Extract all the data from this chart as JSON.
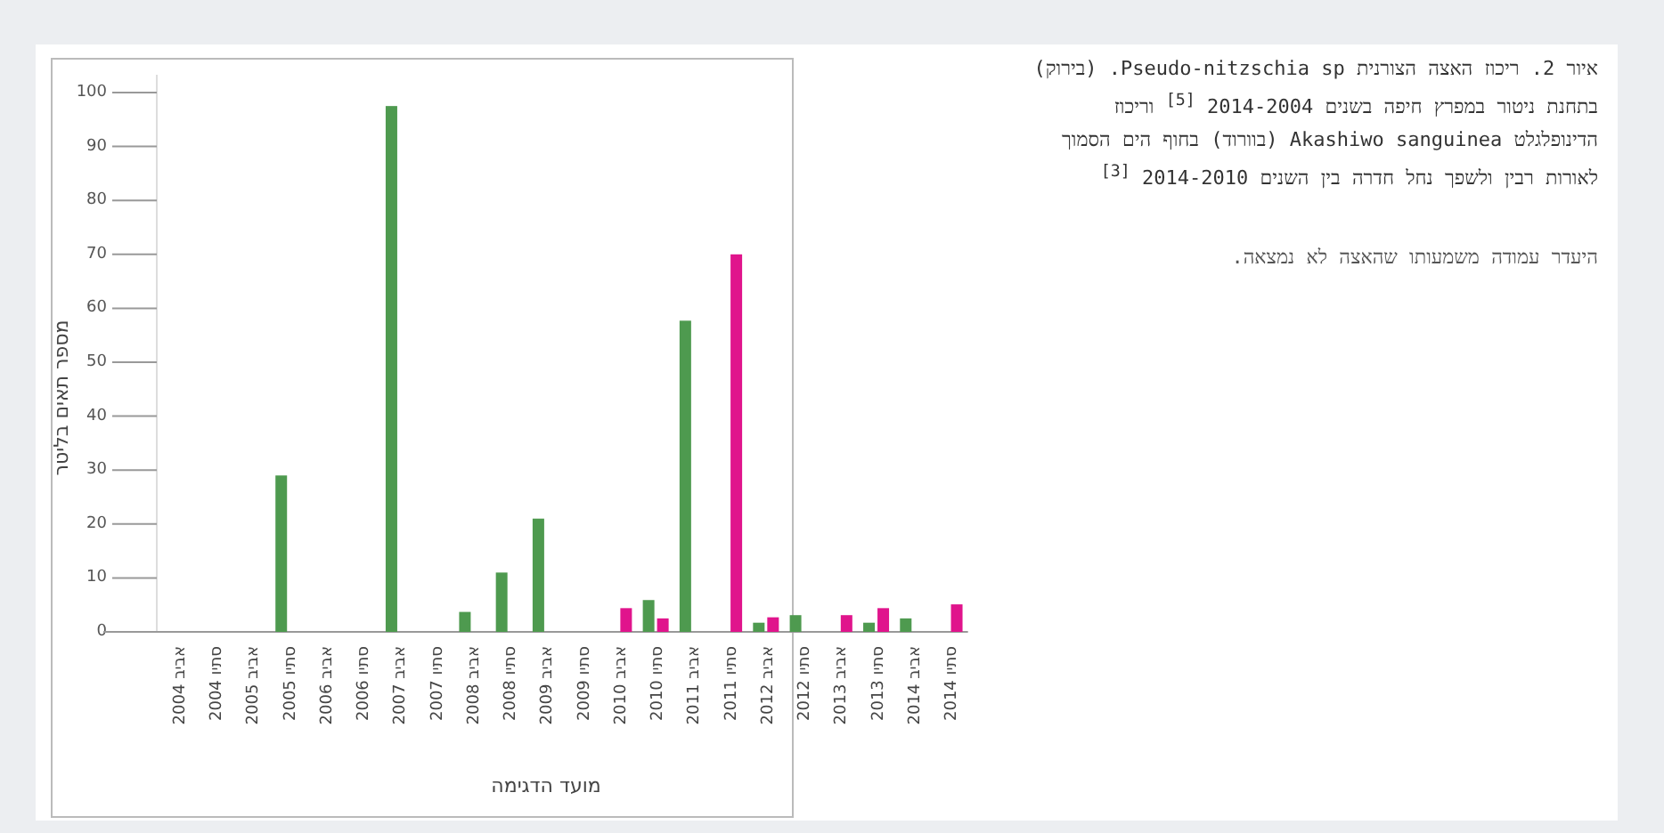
{
  "chart_data": {
    "type": "bar",
    "categories": [
      "אביב 2004",
      "סתיו 2004",
      "אביב 2005",
      "סתיו 2005",
      "אביב 2006",
      "סתיו 2006",
      "אביב 2007",
      "סתיו 2007",
      "אביב 2008",
      "סתיו 2008",
      "אביב 2009",
      "סתיו 2009",
      "אביב 2010",
      "סתיו 2010",
      "אביב 2011",
      "סתיו 2011",
      "אביב 2012",
      "סתיו 2012",
      "אביב 2013",
      "סתיו 2013",
      "אביב 2014",
      "סתיו 2014"
    ],
    "series": [
      {
        "color": "#4e9a4f",
        "values": [
          null,
          null,
          null,
          29,
          null,
          null,
          97.5,
          null,
          3.7,
          11,
          21,
          null,
          null,
          5.9,
          57.7,
          null,
          1.7,
          3.1,
          null,
          1.7,
          2.5,
          null
        ]
      },
      {
        "color": "#e0148c",
        "values": [
          null,
          null,
          null,
          null,
          null,
          null,
          null,
          null,
          null,
          null,
          null,
          null,
          4.4,
          2.5,
          null,
          70,
          2.7,
          null,
          3.1,
          4.4,
          null,
          5.1
        ]
      }
    ],
    "ylim": [
      0,
      100
    ],
    "yticks": [
      0,
      10,
      20,
      30,
      40,
      50,
      60,
      70,
      80,
      90,
      100
    ],
    "ylabel": "מספר תאים בליטר",
    "xlabel": "מועד הדגימה",
    "annotations": [
      "איור 2. ריכוז האצה הצורנית Pseudo-nitzschia sp. (בירוק) בתחנת ניטור במפרץ חיפה בשנים 2014-2004 $^{[5]}$ וריכוז הדינופלגלט Akashiwo sanguinea (בוורוד) בחוף הים הסמוך לאורות רבין ולשפך נחל חדרה בין השנים 2014-2010 $^{[3]}$",
      "היעדר עמודה משמעותו שהאצה לא נמצאה."
    ]
  }
}
